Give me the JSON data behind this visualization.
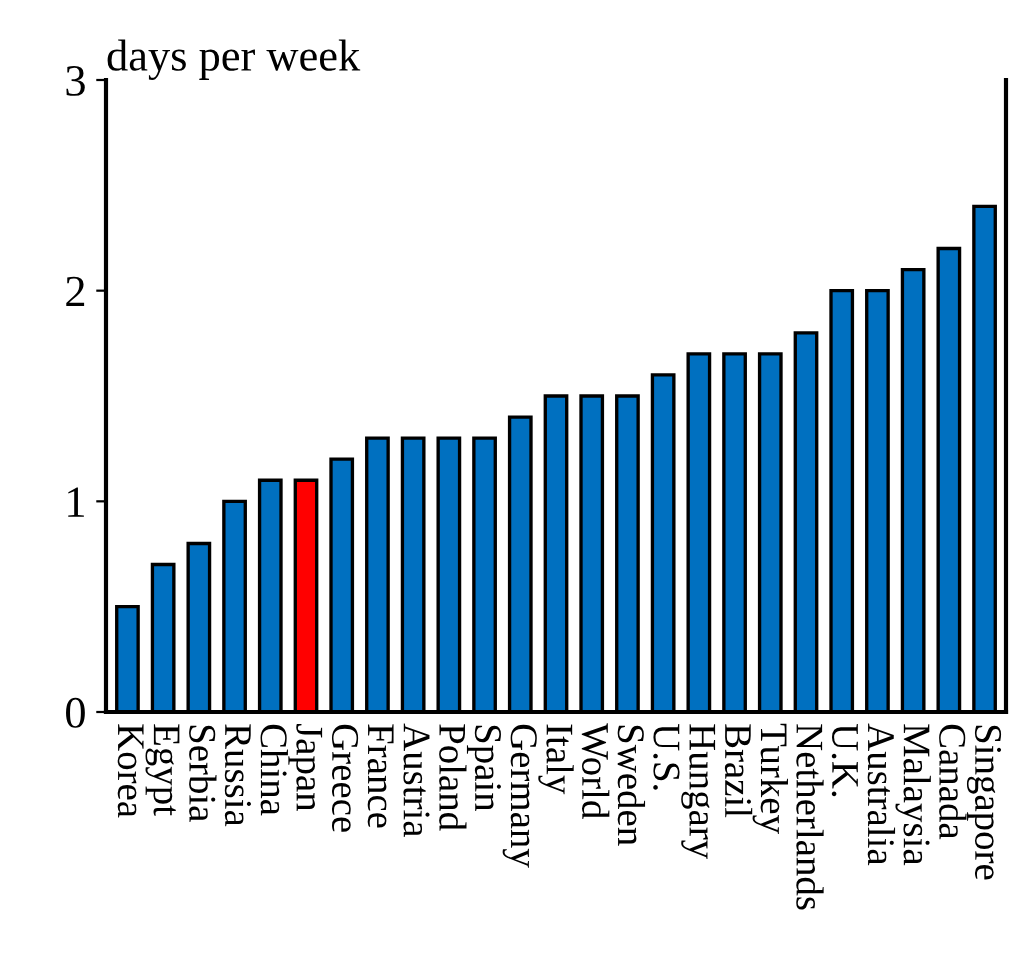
{
  "chart_data": {
    "type": "bar",
    "ylabel": "days per week",
    "categories": [
      "Korea",
      "Egypt",
      "Serbia",
      "Russia",
      "China",
      "Japan",
      "Greece",
      "France",
      "Austria",
      "Poland",
      "Spain",
      "Germany",
      "Italy",
      "World",
      "Sweden",
      "U.S.",
      "Hungary",
      "Brazil",
      "Turkey",
      "Netherlands",
      "U.K.",
      "Australia",
      "Malaysia",
      "Canada",
      "Singapore"
    ],
    "values": [
      0.5,
      0.7,
      0.8,
      1.0,
      1.1,
      1.1,
      1.2,
      1.3,
      1.3,
      1.3,
      1.3,
      1.4,
      1.5,
      1.5,
      1.5,
      1.6,
      1.7,
      1.7,
      1.7,
      1.8,
      2.0,
      2.0,
      2.1,
      2.2,
      2.4
    ],
    "colors": [
      "#0070c0",
      "#0070c0",
      "#0070c0",
      "#0070c0",
      "#0070c0",
      "#ff0000",
      "#0070c0",
      "#0070c0",
      "#0070c0",
      "#0070c0",
      "#0070c0",
      "#0070c0",
      "#0070c0",
      "#0070c0",
      "#0070c0",
      "#0070c0",
      "#0070c0",
      "#0070c0",
      "#0070c0",
      "#0070c0",
      "#0070c0",
      "#0070c0",
      "#0070c0",
      "#0070c0",
      "#0070c0"
    ],
    "ylim": [
      0,
      3
    ],
    "yticks": [
      0,
      1,
      2,
      3
    ],
    "grid": false,
    "legend": false
  }
}
